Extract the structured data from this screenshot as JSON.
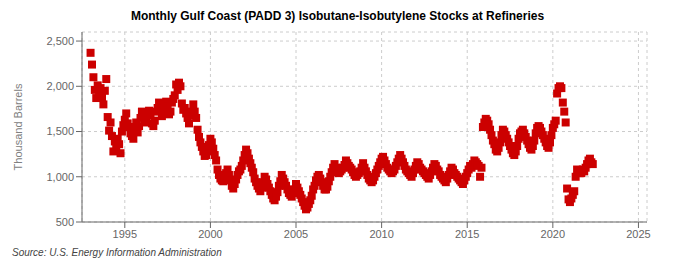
{
  "chart_data": {
    "type": "scatter",
    "title": "Monthly Gulf Coast (PADD 3) Isobutane-Isobutylene Stocks at Refineries",
    "ylabel": "Thousand Barrels",
    "annotations": [
      "Source: U.S. Energy Information Administration"
    ],
    "color": "#CC0000",
    "marker": "square",
    "grid": true,
    "xlim": [
      1992.5,
      2025.5
    ],
    "ylim": [
      500,
      2600
    ],
    "xticks": [
      1995,
      2000,
      2005,
      2010,
      2015,
      2020,
      2025
    ],
    "yticks": [
      500,
      {
        "value": 1000,
        "label": "1,000"
      },
      {
        "value": 1500,
        "label": "1,500"
      },
      {
        "value": 2000,
        "label": "2,000"
      },
      {
        "value": 2500,
        "label": "2,500"
      }
    ],
    "x": [
      1993.0,
      1993.083,
      1993.167,
      1993.25,
      1993.333,
      1993.417,
      1993.5,
      1993.583,
      1993.667,
      1993.75,
      1993.833,
      1993.917,
      1994.0,
      1994.083,
      1994.167,
      1994.25,
      1994.333,
      1994.417,
      1994.5,
      1994.583,
      1994.667,
      1994.75,
      1994.833,
      1994.917,
      1995.0,
      1995.083,
      1995.167,
      1995.25,
      1995.333,
      1995.417,
      1995.5,
      1995.583,
      1995.667,
      1995.75,
      1995.833,
      1995.917,
      1996.0,
      1996.083,
      1996.167,
      1996.25,
      1996.333,
      1996.417,
      1996.5,
      1996.583,
      1996.667,
      1996.75,
      1996.833,
      1996.917,
      1997.0,
      1997.083,
      1997.167,
      1997.25,
      1997.333,
      1997.417,
      1997.5,
      1997.583,
      1997.667,
      1997.75,
      1997.833,
      1997.917,
      1998.0,
      1998.083,
      1998.167,
      1998.25,
      1998.333,
      1998.417,
      1998.5,
      1998.583,
      1998.667,
      1998.75,
      1998.833,
      1998.917,
      1999.0,
      1999.083,
      1999.167,
      1999.25,
      1999.333,
      1999.417,
      1999.5,
      1999.583,
      1999.667,
      1999.75,
      1999.833,
      1999.917,
      2000.0,
      2000.083,
      2000.167,
      2000.25,
      2000.333,
      2000.417,
      2000.5,
      2000.583,
      2000.667,
      2000.75,
      2000.833,
      2000.917,
      2001.0,
      2001.083,
      2001.167,
      2001.25,
      2001.333,
      2001.417,
      2001.5,
      2001.583,
      2001.667,
      2001.75,
      2001.833,
      2001.917,
      2002.0,
      2002.083,
      2002.167,
      2002.25,
      2002.333,
      2002.417,
      2002.5,
      2002.583,
      2002.667,
      2002.75,
      2002.833,
      2002.917,
      2003.0,
      2003.083,
      2003.167,
      2003.25,
      2003.333,
      2003.417,
      2003.5,
      2003.583,
      2003.667,
      2003.75,
      2003.833,
      2003.917,
      2004.0,
      2004.083,
      2004.167,
      2004.25,
      2004.333,
      2004.417,
      2004.5,
      2004.583,
      2004.667,
      2004.75,
      2004.833,
      2004.917,
      2005.0,
      2005.083,
      2005.167,
      2005.25,
      2005.333,
      2005.417,
      2005.5,
      2005.583,
      2005.667,
      2005.75,
      2005.833,
      2005.917,
      2006.0,
      2006.083,
      2006.167,
      2006.25,
      2006.333,
      2006.417,
      2006.5,
      2006.583,
      2006.667,
      2006.75,
      2006.833,
      2006.917,
      2007.0,
      2007.083,
      2007.167,
      2007.25,
      2007.333,
      2007.417,
      2007.5,
      2007.583,
      2007.667,
      2007.75,
      2007.833,
      2007.917,
      2008.0,
      2008.083,
      2008.167,
      2008.25,
      2008.333,
      2008.417,
      2008.5,
      2008.583,
      2008.667,
      2008.75,
      2008.833,
      2008.917,
      2009.0,
      2009.083,
      2009.167,
      2009.25,
      2009.333,
      2009.417,
      2009.5,
      2009.583,
      2009.667,
      2009.75,
      2009.833,
      2009.917,
      2010.0,
      2010.083,
      2010.167,
      2010.25,
      2010.333,
      2010.417,
      2010.5,
      2010.583,
      2010.667,
      2010.75,
      2010.833,
      2010.917,
      2011.0,
      2011.083,
      2011.167,
      2011.25,
      2011.333,
      2011.417,
      2011.5,
      2011.583,
      2011.667,
      2011.75,
      2011.833,
      2011.917,
      2012.0,
      2012.083,
      2012.167,
      2012.25,
      2012.333,
      2012.417,
      2012.5,
      2012.583,
      2012.667,
      2012.75,
      2012.833,
      2012.917,
      2013.0,
      2013.083,
      2013.167,
      2013.25,
      2013.333,
      2013.417,
      2013.5,
      2013.583,
      2013.667,
      2013.75,
      2013.833,
      2013.917,
      2014.0,
      2014.083,
      2014.167,
      2014.25,
      2014.333,
      2014.417,
      2014.5,
      2014.583,
      2014.667,
      2014.75,
      2014.833,
      2014.917,
      2015.0,
      2015.083,
      2015.167,
      2015.25,
      2015.333,
      2015.417,
      2015.5,
      2015.583,
      2015.667,
      2015.75,
      2015.833,
      2015.917,
      2016.0,
      2016.083,
      2016.167,
      2016.25,
      2016.333,
      2016.417,
      2016.5,
      2016.583,
      2016.667,
      2016.75,
      2016.833,
      2016.917,
      2017.0,
      2017.083,
      2017.167,
      2017.25,
      2017.333,
      2017.417,
      2017.5,
      2017.583,
      2017.667,
      2017.75,
      2017.833,
      2017.917,
      2018.0,
      2018.083,
      2018.167,
      2018.25,
      2018.333,
      2018.417,
      2018.5,
      2018.583,
      2018.667,
      2018.75,
      2018.833,
      2018.917,
      2019.0,
      2019.083,
      2019.167,
      2019.25,
      2019.333,
      2019.417,
      2019.5,
      2019.583,
      2019.667,
      2019.75,
      2019.833,
      2019.917,
      2020.0,
      2020.083,
      2020.167,
      2020.25,
      2020.333,
      2020.417,
      2020.5,
      2020.583,
      2020.667,
      2020.75,
      2020.833,
      2020.917,
      2021.0,
      2021.083,
      2021.167,
      2021.25,
      2021.333,
      2021.417,
      2021.5,
      2021.583,
      2021.667,
      2021.75,
      2021.833,
      2021.917,
      2022.0,
      2022.083,
      2022.167,
      2022.25,
      2022.333
    ],
    "values": [
      2370,
      2240,
      2100,
      1960,
      1870,
      2010,
      1900,
      1980,
      1880,
      1800,
      1950,
      2080,
      1660,
      1510,
      1600,
      1450,
      1280,
      1390,
      1310,
      1420,
      1360,
      1260,
      1500,
      1570,
      1630,
      1700,
      1590,
      1550,
      1480,
      1450,
      1420,
      1550,
      1600,
      1490,
      1560,
      1650,
      1720,
      1680,
      1600,
      1640,
      1700,
      1730,
      1680,
      1590,
      1560,
      1620,
      1720,
      1760,
      1820,
      1750,
      1670,
      1710,
      1800,
      1830,
      1780,
      1690,
      1720,
      1820,
      1860,
      1900,
      2020,
      1960,
      2040,
      2000,
      1810,
      1740,
      1760,
      1700,
      1650,
      1590,
      1680,
      1720,
      1800,
      1720,
      1650,
      1520,
      1440,
      1380,
      1330,
      1280,
      1230,
      1240,
      1280,
      1350,
      1420,
      1380,
      1310,
      1240,
      1180,
      1080,
      1020,
      980,
      960,
      950,
      1000,
      1040,
      1080,
      1020,
      960,
      900,
      870,
      920,
      970,
      1020,
      1060,
      1080,
      1120,
      1180,
      1240,
      1300,
      1260,
      1200,
      1150,
      1100,
      1050,
      980,
      940,
      900,
      870,
      840,
      880,
      940,
      1000,
      970,
      920,
      880,
      840,
      800,
      760,
      740,
      780,
      830,
      900,
      950,
      1020,
      980,
      940,
      900,
      860,
      820,
      800,
      780,
      820,
      860,
      920,
      880,
      840,
      800,
      760,
      720,
      680,
      640,
      660,
      700,
      740,
      790,
      860,
      900,
      960,
      1000,
      1020,
      980,
      940,
      900,
      860,
      860,
      890,
      950,
      1000,
      1050,
      1100,
      1140,
      1100,
      1060,
      1040,
      1060,
      1080,
      1100,
      1130,
      1180,
      1150,
      1120,
      1100,
      1080,
      1050,
      1020,
      1000,
      1020,
      1040,
      1060,
      1100,
      1150,
      1100,
      1060,
      1020,
      980,
      960,
      940,
      960,
      1000,
      1040,
      1080,
      1120,
      1160,
      1200,
      1220,
      1180,
      1140,
      1100,
      1080,
      1060,
      1040,
      1060,
      1080,
      1120,
      1160,
      1200,
      1240,
      1200,
      1160,
      1120,
      1080,
      1060,
      1040,
      1020,
      1000,
      1040,
      1080,
      1120,
      1160,
      1140,
      1100,
      1080,
      1060,
      1040,
      1020,
      1000,
      980,
      1020,
      1060,
      1100,
      1140,
      1120,
      1080,
      1060,
      1020,
      1000,
      980,
      960,
      940,
      980,
      1020,
      1060,
      1100,
      1080,
      1040,
      1020,
      1000,
      980,
      960,
      940,
      920,
      960,
      1000,
      1040,
      1080,
      1120,
      1100,
      1140,
      1180,
      1160,
      1140,
      1120,
      1000,
      1100,
      1550,
      1600,
      1640,
      1620,
      1580,
      1520,
      1460,
      1400,
      1360,
      1300,
      1280,
      1320,
      1380,
      1460,
      1520,
      1500,
      1460,
      1420,
      1380,
      1340,
      1300,
      1260,
      1240,
      1280,
      1340,
      1420,
      1480,
      1500,
      1520,
      1480,
      1440,
      1400,
      1360,
      1320,
      1300,
      1340,
      1400,
      1480,
      1540,
      1560,
      1540,
      1500,
      1460,
      1420,
      1380,
      1340,
      1320,
      1380,
      1460,
      1540,
      1580,
      1620,
      1920,
      1980,
      2000,
      1980,
      1820,
      1720,
      1600,
      870,
      750,
      720,
      760,
      800,
      840,
      1000,
      1080,
      1060,
      1040,
      1040,
      1080,
      1060,
      1100,
      1140,
      1180,
      1200,
      1160,
      1140
    ]
  }
}
